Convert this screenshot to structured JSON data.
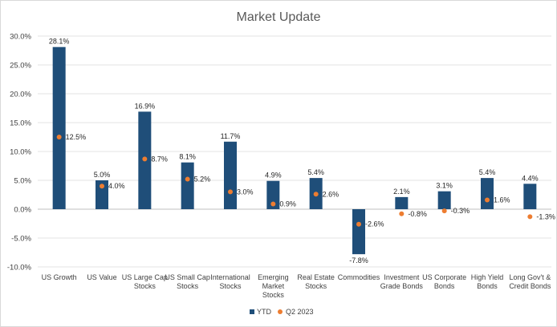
{
  "chart_data": {
    "type": "bar",
    "title": "Market Update",
    "xlabel": "",
    "ylabel": "",
    "ylim": [
      -10,
      30
    ],
    "yticks": [
      30,
      25,
      20,
      15,
      10,
      5,
      0,
      -5,
      -10
    ],
    "ytick_labels": [
      "30.0%",
      "25.0%",
      "20.0%",
      "15.0%",
      "10.0%",
      "5.0%",
      "0.0%",
      "-5.0%",
      "-10.0%"
    ],
    "grid": true,
    "legend_position": "bottom",
    "categories": [
      [
        "US Growth"
      ],
      [
        "US Value"
      ],
      [
        "US Large Cap",
        "Stocks"
      ],
      [
        "US Small Cap",
        "Stocks"
      ],
      [
        "International",
        "Stocks"
      ],
      [
        "Emerging",
        "Market",
        "Stocks"
      ],
      [
        "Real Estate",
        "Stocks"
      ],
      [
        "Commodities"
      ],
      [
        "Investment",
        "Grade Bonds"
      ],
      [
        "US Corporate",
        "Bonds"
      ],
      [
        "High Yield",
        "Bonds"
      ],
      [
        "Long Gov't &",
        "Credit Bonds"
      ]
    ],
    "series": [
      {
        "name": "YTD",
        "kind": "bar",
        "color": "#1f4e79",
        "values": [
          28.1,
          5.0,
          16.9,
          8.1,
          11.7,
          4.9,
          5.4,
          -7.8,
          2.1,
          3.1,
          5.4,
          4.4
        ],
        "labels": [
          "28.1%",
          "5.0%",
          "16.9%",
          "8.1%",
          "11.7%",
          "4.9%",
          "5.4%",
          "-7.8%",
          "2.1%",
          "3.1%",
          "5.4%",
          "4.4%"
        ]
      },
      {
        "name": "Q2 2023",
        "kind": "point",
        "color": "#ed7d31",
        "values": [
          12.5,
          4.0,
          8.7,
          5.2,
          3.0,
          0.9,
          2.6,
          -2.6,
          -0.8,
          -0.3,
          1.6,
          -1.3
        ],
        "labels": [
          "12.5%",
          "4.0%",
          "8.7%",
          "5.2%",
          "3.0%",
          "0.9%",
          "2.6%",
          "-2.6%",
          "-0.8%",
          "-0.3%",
          "1.6%",
          "-1.3%"
        ]
      }
    ]
  }
}
